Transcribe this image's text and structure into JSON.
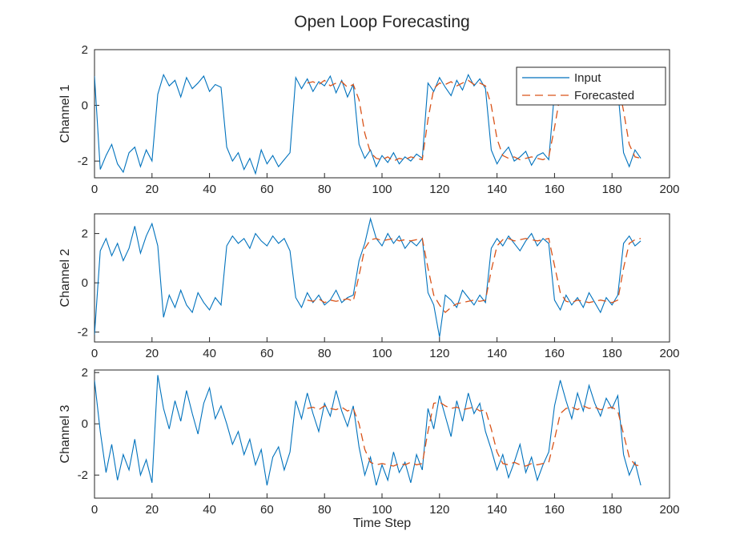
{
  "title": "Open Loop Forecasting",
  "xlabel": "Time Step",
  "legend": {
    "entries": [
      "Input",
      "Forecasted"
    ],
    "position": "northeast"
  },
  "colors": {
    "input": "#0072BD",
    "forecast": "#D95319",
    "axis": "#262626",
    "background": "#ffffff"
  },
  "chart_data": [
    {
      "type": "line",
      "ylabel": "Channel 1",
      "xlabel": "",
      "xlim": [
        0,
        200
      ],
      "ylim": [
        -2.6,
        2.0
      ],
      "xticks": [
        0,
        20,
        40,
        60,
        80,
        100,
        120,
        140,
        160,
        180,
        200
      ],
      "yticks": [
        -2,
        0,
        2
      ],
      "grid": false,
      "series": [
        {
          "name": "Input",
          "style": "solid",
          "x_start": 0,
          "x_step": 2,
          "values": [
            1.05,
            -2.3,
            -1.8,
            -1.4,
            -2.1,
            -2.4,
            -1.7,
            -1.5,
            -2.2,
            -1.6,
            -2.0,
            0.4,
            1.1,
            0.7,
            0.9,
            0.3,
            1.0,
            0.6,
            0.8,
            1.05,
            0.5,
            0.75,
            0.65,
            -1.5,
            -2.0,
            -1.7,
            -2.3,
            -1.9,
            -2.45,
            -1.6,
            -2.1,
            -1.8,
            -2.2,
            -1.95,
            -1.7,
            1.0,
            0.6,
            0.95,
            0.5,
            0.85,
            0.7,
            1.05,
            0.45,
            0.9,
            0.3,
            0.75,
            -1.4,
            -1.9,
            -1.6,
            -2.2,
            -1.8,
            -2.05,
            -1.7,
            -2.1,
            -1.85,
            -2.0,
            -1.75,
            -1.9,
            0.8,
            0.5,
            1.0,
            0.65,
            0.35,
            0.9,
            0.55,
            1.1,
            0.7,
            0.95,
            0.6,
            -1.6,
            -2.1,
            -1.75,
            -1.5,
            -2.0,
            -1.85,
            -1.65,
            -2.15,
            -1.8,
            -1.7,
            -1.95,
            0.5,
            0.9,
            0.65,
            1.05,
            0.7,
            0.4,
            0.95,
            0.6,
            0.85,
            0.75,
            1.0,
            0.55,
            -1.7,
            -2.2,
            -1.6,
            -1.9
          ]
        },
        {
          "name": "Forecasted",
          "style": "dashed",
          "x_start": 74,
          "x_step": 2,
          "values": [
            0.8,
            0.85,
            0.75,
            0.9,
            0.7,
            0.8,
            0.85,
            0.65,
            0.75,
            0.2,
            -1.0,
            -1.7,
            -1.9,
            -1.95,
            -1.85,
            -2.0,
            -1.9,
            -1.95,
            -1.85,
            -1.9,
            -1.95,
            -0.5,
            0.6,
            0.8,
            0.75,
            0.85,
            0.7,
            0.8,
            0.9,
            0.75,
            0.8,
            0.7,
            0.0,
            -1.2,
            -1.8,
            -1.9,
            -1.85,
            -1.95,
            -1.9,
            -1.85,
            -1.9,
            -1.95,
            -1.85,
            -0.8,
            0.4,
            0.75,
            0.8,
            0.7,
            0.85,
            0.75,
            0.8,
            0.9,
            0.75,
            0.8,
            0.85,
            -0.2,
            -1.4,
            -1.85,
            -1.9
          ]
        }
      ]
    },
    {
      "type": "line",
      "ylabel": "Channel 2",
      "xlabel": "",
      "xlim": [
        0,
        200
      ],
      "ylim": [
        -2.4,
        2.8
      ],
      "xticks": [
        0,
        20,
        40,
        60,
        80,
        100,
        120,
        140,
        160,
        180,
        200
      ],
      "yticks": [
        -2,
        0,
        2
      ],
      "grid": false,
      "series": [
        {
          "name": "Input",
          "style": "solid",
          "x_start": 0,
          "x_step": 2,
          "values": [
            -2.1,
            1.3,
            1.8,
            1.1,
            1.6,
            0.9,
            1.4,
            2.3,
            1.2,
            1.9,
            2.4,
            1.5,
            -1.4,
            -0.5,
            -1.0,
            -0.3,
            -0.9,
            -1.2,
            -0.4,
            -0.8,
            -1.1,
            -0.6,
            -0.9,
            1.5,
            1.9,
            1.6,
            1.8,
            1.4,
            2.0,
            1.7,
            1.5,
            1.9,
            1.6,
            1.8,
            1.3,
            -0.6,
            -1.0,
            -0.4,
            -0.8,
            -0.5,
            -0.9,
            -0.7,
            -0.3,
            -0.8,
            -0.6,
            -0.5,
            0.9,
            1.6,
            2.6,
            1.8,
            1.5,
            2.0,
            1.6,
            1.9,
            1.4,
            1.7,
            1.5,
            1.8,
            -0.4,
            -0.9,
            -2.2,
            -0.5,
            -0.7,
            -1.0,
            -0.3,
            -0.6,
            -0.9,
            -0.5,
            -0.8,
            1.4,
            1.8,
            1.5,
            1.9,
            1.6,
            1.3,
            1.7,
            2.0,
            1.5,
            1.8,
            1.6,
            -0.7,
            -1.1,
            -0.5,
            -0.9,
            -0.6,
            -1.0,
            -0.4,
            -0.8,
            -1.2,
            -0.6,
            -0.9,
            -0.5,
            1.6,
            1.9,
            1.5,
            1.7
          ]
        },
        {
          "name": "Forecasted",
          "style": "dashed",
          "x_start": 74,
          "x_step": 2,
          "values": [
            -0.7,
            -0.75,
            -0.65,
            -0.8,
            -0.7,
            -0.75,
            -0.7,
            -0.65,
            -0.75,
            0.3,
            1.4,
            1.75,
            1.8,
            1.7,
            1.75,
            1.8,
            1.7,
            1.75,
            1.7,
            1.75,
            1.8,
            0.6,
            -0.5,
            -0.9,
            -1.2,
            -1.0,
            -0.85,
            -0.8,
            -0.75,
            -0.7,
            -0.75,
            -0.7,
            0.5,
            1.5,
            1.75,
            1.8,
            1.7,
            1.75,
            1.8,
            1.75,
            1.7,
            1.75,
            1.8,
            0.7,
            -0.4,
            -0.75,
            -0.8,
            -0.7,
            -0.75,
            -0.8,
            -0.75,
            -0.7,
            -0.75,
            -0.8,
            -0.7,
            0.6,
            1.6,
            1.75,
            1.8
          ]
        }
      ]
    },
    {
      "type": "line",
      "ylabel": "Channel 3",
      "xlabel": "Time Step",
      "xlim": [
        0,
        200
      ],
      "ylim": [
        -2.9,
        2.1
      ],
      "xticks": [
        0,
        20,
        40,
        60,
        80,
        100,
        120,
        140,
        160,
        180,
        200
      ],
      "yticks": [
        -2,
        0,
        2
      ],
      "grid": false,
      "series": [
        {
          "name": "Input",
          "style": "solid",
          "x_start": 0,
          "x_step": 2,
          "values": [
            1.7,
            -0.3,
            -1.9,
            -0.8,
            -2.2,
            -1.2,
            -1.8,
            -0.6,
            -2.0,
            -1.4,
            -2.3,
            1.9,
            0.6,
            -0.2,
            0.9,
            0.1,
            1.3,
            0.4,
            -0.4,
            0.8,
            1.4,
            0.2,
            0.7,
            0.0,
            -0.8,
            -0.3,
            -1.2,
            -0.6,
            -1.6,
            -1.0,
            -2.4,
            -1.3,
            -0.9,
            -1.8,
            -1.1,
            0.9,
            0.2,
            1.2,
            0.4,
            -0.3,
            0.8,
            0.3,
            1.3,
            0.5,
            -0.1,
            0.7,
            -0.9,
            -2.0,
            -1.3,
            -2.4,
            -1.6,
            -2.2,
            -1.1,
            -1.9,
            -1.5,
            -2.3,
            -1.2,
            -1.8,
            0.6,
            -0.2,
            1.1,
            0.3,
            -0.5,
            0.9,
            0.1,
            1.2,
            0.4,
            0.8,
            -0.3,
            -1.0,
            -1.8,
            -1.2,
            -2.1,
            -1.5,
            -0.8,
            -1.9,
            -1.3,
            -2.2,
            -1.6,
            -1.1,
            0.7,
            1.7,
            0.9,
            0.2,
            1.2,
            0.5,
            1.5,
            0.8,
            0.3,
            1.0,
            0.6,
            1.1,
            -1.2,
            -2.0,
            -1.5,
            -2.4
          ]
        },
        {
          "name": "Forecasted",
          "style": "dashed",
          "x_start": 74,
          "x_step": 2,
          "values": [
            0.6,
            0.65,
            0.55,
            0.7,
            0.6,
            0.55,
            0.65,
            0.5,
            0.6,
            0.0,
            -1.0,
            -1.5,
            -1.6,
            -1.55,
            -1.6,
            -1.65,
            -1.55,
            -1.6,
            -1.5,
            -1.6,
            -1.55,
            -0.3,
            0.8,
            0.85,
            0.7,
            0.6,
            0.65,
            0.55,
            0.6,
            0.65,
            0.5,
            0.55,
            -0.2,
            -1.1,
            -1.55,
            -1.6,
            -1.5,
            -1.6,
            -1.65,
            -1.55,
            -1.6,
            -1.55,
            -1.5,
            -0.6,
            0.4,
            0.6,
            0.65,
            0.55,
            0.7,
            0.6,
            0.65,
            0.55,
            0.6,
            0.65,
            0.5,
            -0.4,
            -1.3,
            -1.6,
            -1.65
          ]
        }
      ]
    }
  ]
}
